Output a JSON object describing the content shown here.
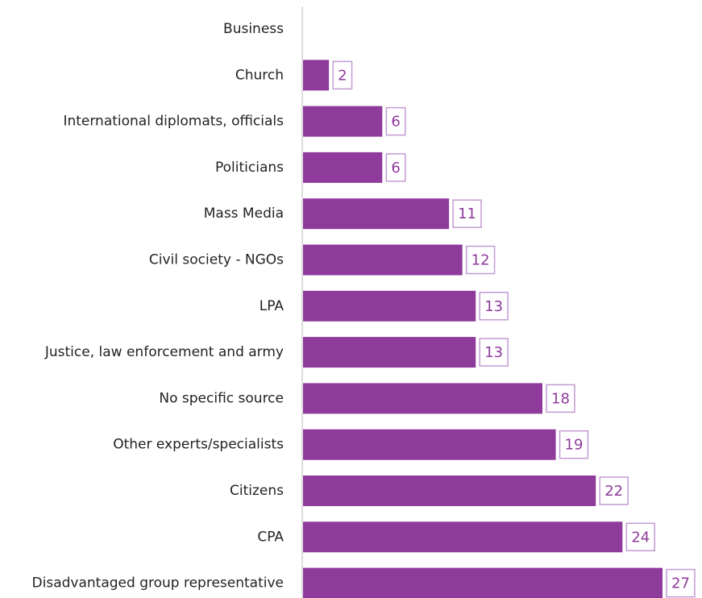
{
  "chart_data": {
    "type": "hbar",
    "categories": [
      "Business",
      "Church",
      "International diplomats, officials",
      "Politicians",
      "Mass Media",
      "Civil society - NGOs",
      "LPA",
      "Justice, law enforcement and army",
      "No specific source",
      "Other experts/specialists",
      "Citizens",
      "CPA",
      "Disadvantaged group representative"
    ],
    "values": [
      0,
      2,
      6,
      6,
      11,
      12,
      13,
      13,
      18,
      19,
      22,
      24,
      27
    ],
    "color": "#8e3b9b",
    "xlim": [
      0,
      27
    ]
  }
}
